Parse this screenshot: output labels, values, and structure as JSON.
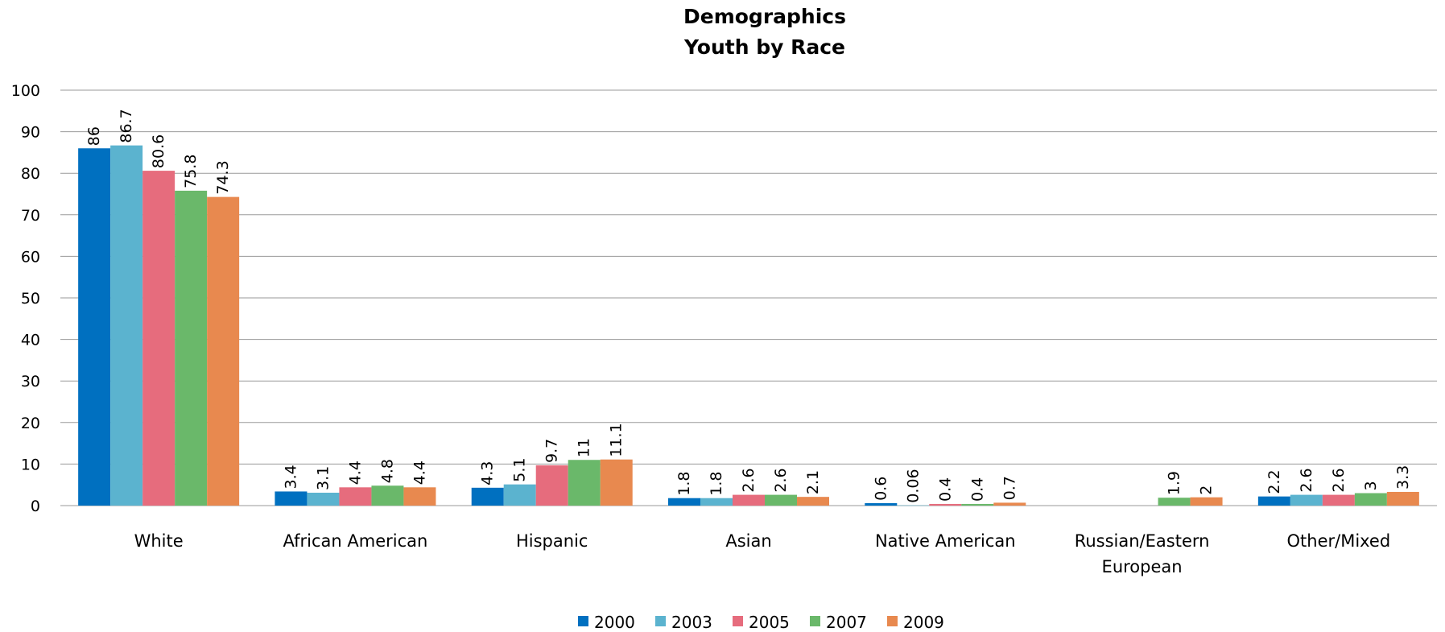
{
  "chart_data": {
    "type": "bar",
    "title": "Demographics",
    "subtitle": "Youth by Race",
    "xlabel": "",
    "ylabel": "",
    "ylim": [
      0,
      100
    ],
    "yticks": [
      0,
      10,
      20,
      30,
      40,
      50,
      60,
      70,
      80,
      90,
      100
    ],
    "grid": true,
    "legend_position": "bottom",
    "categories": [
      [
        "White"
      ],
      [
        "African American"
      ],
      [
        "Hispanic"
      ],
      [
        "Asian"
      ],
      [
        "Native American"
      ],
      [
        "Russian/Eastern",
        "European"
      ],
      [
        "Other/Mixed"
      ]
    ],
    "series": [
      {
        "name": "2000",
        "color": "#0070c0",
        "values": [
          86,
          3.4,
          4.3,
          1.8,
          0.6,
          null,
          2.2
        ]
      },
      {
        "name": "2003",
        "color": "#5bb3cf",
        "values": [
          86.7,
          3.1,
          5.1,
          1.8,
          0.06,
          null,
          2.6
        ]
      },
      {
        "name": "2005",
        "color": "#e66c7d",
        "values": [
          80.6,
          4.4,
          9.7,
          2.6,
          0.4,
          null,
          2.6
        ]
      },
      {
        "name": "2007",
        "color": "#6ab86a",
        "values": [
          75.8,
          4.8,
          11,
          2.6,
          0.4,
          1.9,
          3
        ]
      },
      {
        "name": "2009",
        "color": "#e8894f",
        "values": [
          74.3,
          4.4,
          11.1,
          2.1,
          0.7,
          2,
          3.3
        ]
      }
    ]
  }
}
